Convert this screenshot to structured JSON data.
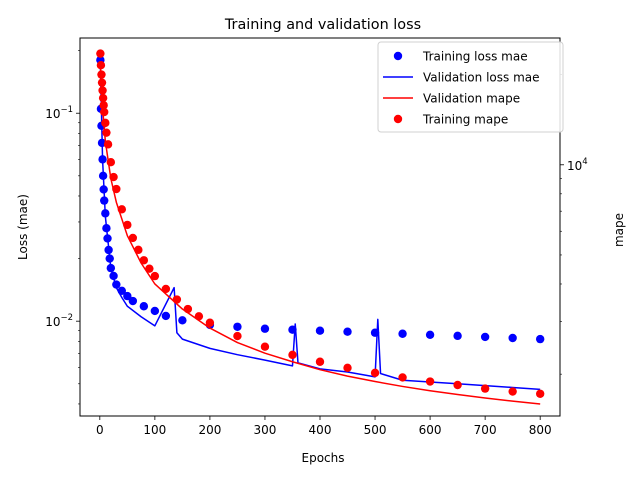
{
  "chart_data": {
    "type": "line",
    "title": "Training and validation loss",
    "xlabel": "Epochs",
    "ylabel": "Loss (mae)",
    "ylabel_right": "mape",
    "x_range": [
      -36,
      836
    ],
    "x_ticks": [
      0,
      100,
      200,
      300,
      400,
      500,
      600,
      700,
      800
    ],
    "y_left": {
      "scale": "log",
      "range": [
        0.0035,
        0.23
      ],
      "major_ticks": [
        0.01,
        0.1
      ],
      "major_labels": [
        "10^-2",
        "10^-1"
      ]
    },
    "y_right": {
      "scale": "log",
      "range": [
        1450,
        26500
      ],
      "major_ticks": [
        10000
      ],
      "major_labels": [
        "10^4"
      ]
    },
    "grid": false,
    "legend_position": "upper right",
    "series": [
      {
        "name": "Training loss mae",
        "axis": "left",
        "style": "markers",
        "color": "#0000ff",
        "points": [
          [
            1,
            0.18
          ],
          [
            2,
            0.105
          ],
          [
            3,
            0.087
          ],
          [
            4,
            0.072
          ],
          [
            5,
            0.06
          ],
          [
            6,
            0.05
          ],
          [
            7,
            0.043
          ],
          [
            8,
            0.038
          ],
          [
            10,
            0.033
          ],
          [
            12,
            0.028
          ],
          [
            14,
            0.025
          ],
          [
            16,
            0.022
          ],
          [
            18,
            0.02
          ],
          [
            20,
            0.018
          ],
          [
            25,
            0.0165
          ],
          [
            30,
            0.015
          ],
          [
            40,
            0.014
          ],
          [
            50,
            0.0132
          ],
          [
            60,
            0.0125
          ],
          [
            80,
            0.0118
          ],
          [
            100,
            0.0112
          ],
          [
            120,
            0.0106
          ],
          [
            150,
            0.0101
          ],
          [
            200,
            0.0096
          ],
          [
            250,
            0.0094
          ],
          [
            300,
            0.0092
          ],
          [
            350,
            0.0091
          ],
          [
            400,
            0.009
          ],
          [
            450,
            0.0089
          ],
          [
            500,
            0.0088
          ],
          [
            550,
            0.0087
          ],
          [
            600,
            0.0086
          ],
          [
            650,
            0.0085
          ],
          [
            700,
            0.0084
          ],
          [
            750,
            0.0083
          ],
          [
            800,
            0.0082
          ]
        ]
      },
      {
        "name": "Validation loss mae",
        "axis": "left",
        "style": "line",
        "color": "#0000ff",
        "points": [
          [
            1,
            0.17
          ],
          [
            5,
            0.06
          ],
          [
            10,
            0.032
          ],
          [
            20,
            0.018
          ],
          [
            30,
            0.0145
          ],
          [
            40,
            0.013
          ],
          [
            50,
            0.0118
          ],
          [
            75,
            0.0105
          ],
          [
            100,
            0.0095
          ],
          [
            135,
            0.0145
          ],
          [
            140,
            0.0088
          ],
          [
            150,
            0.0082
          ],
          [
            200,
            0.0074
          ],
          [
            250,
            0.0069
          ],
          [
            300,
            0.0065
          ],
          [
            350,
            0.0061
          ],
          [
            355,
            0.0097
          ],
          [
            360,
            0.0063
          ],
          [
            400,
            0.0059
          ],
          [
            450,
            0.0057
          ],
          [
            500,
            0.0054
          ],
          [
            505,
            0.0102
          ],
          [
            510,
            0.0056
          ],
          [
            550,
            0.0052
          ],
          [
            600,
            0.0051
          ],
          [
            650,
            0.005
          ],
          [
            700,
            0.0049
          ],
          [
            750,
            0.0048
          ],
          [
            800,
            0.0047
          ]
        ]
      },
      {
        "name": "Validation mape",
        "axis": "right",
        "style": "line",
        "color": "#ff0000",
        "points": [
          [
            1,
            22000
          ],
          [
            3,
            18000
          ],
          [
            5,
            15500
          ],
          [
            10,
            12000
          ],
          [
            20,
            9000
          ],
          [
            30,
            7500
          ],
          [
            50,
            5800
          ],
          [
            75,
            4700
          ],
          [
            100,
            4000
          ],
          [
            150,
            3300
          ],
          [
            200,
            2850
          ],
          [
            250,
            2550
          ],
          [
            300,
            2350
          ],
          [
            350,
            2200
          ],
          [
            400,
            2070
          ],
          [
            450,
            1970
          ],
          [
            500,
            1890
          ],
          [
            550,
            1820
          ],
          [
            600,
            1760
          ],
          [
            650,
            1710
          ],
          [
            700,
            1665
          ],
          [
            750,
            1625
          ],
          [
            800,
            1590
          ]
        ]
      },
      {
        "name": "Training mape",
        "axis": "right",
        "style": "markers",
        "color": "#ff0000",
        "points": [
          [
            1,
            23500
          ],
          [
            2,
            21500
          ],
          [
            3,
            20000
          ],
          [
            4,
            18800
          ],
          [
            5,
            17700
          ],
          [
            6,
            16700
          ],
          [
            7,
            15800
          ],
          [
            8,
            15000
          ],
          [
            10,
            13800
          ],
          [
            12,
            12800
          ],
          [
            15,
            11700
          ],
          [
            20,
            10200
          ],
          [
            25,
            9100
          ],
          [
            30,
            8300
          ],
          [
            40,
            7100
          ],
          [
            50,
            6300
          ],
          [
            60,
            5700
          ],
          [
            70,
            5200
          ],
          [
            80,
            4800
          ],
          [
            90,
            4500
          ],
          [
            100,
            4250
          ],
          [
            120,
            3850
          ],
          [
            140,
            3550
          ],
          [
            160,
            3300
          ],
          [
            180,
            3120
          ],
          [
            200,
            2970
          ],
          [
            250,
            2680
          ],
          [
            300,
            2470
          ],
          [
            350,
            2320
          ],
          [
            400,
            2200
          ],
          [
            450,
            2100
          ],
          [
            500,
            2020
          ],
          [
            550,
            1950
          ],
          [
            600,
            1890
          ],
          [
            650,
            1840
          ],
          [
            700,
            1790
          ],
          [
            750,
            1750
          ],
          [
            800,
            1720
          ]
        ]
      }
    ]
  }
}
